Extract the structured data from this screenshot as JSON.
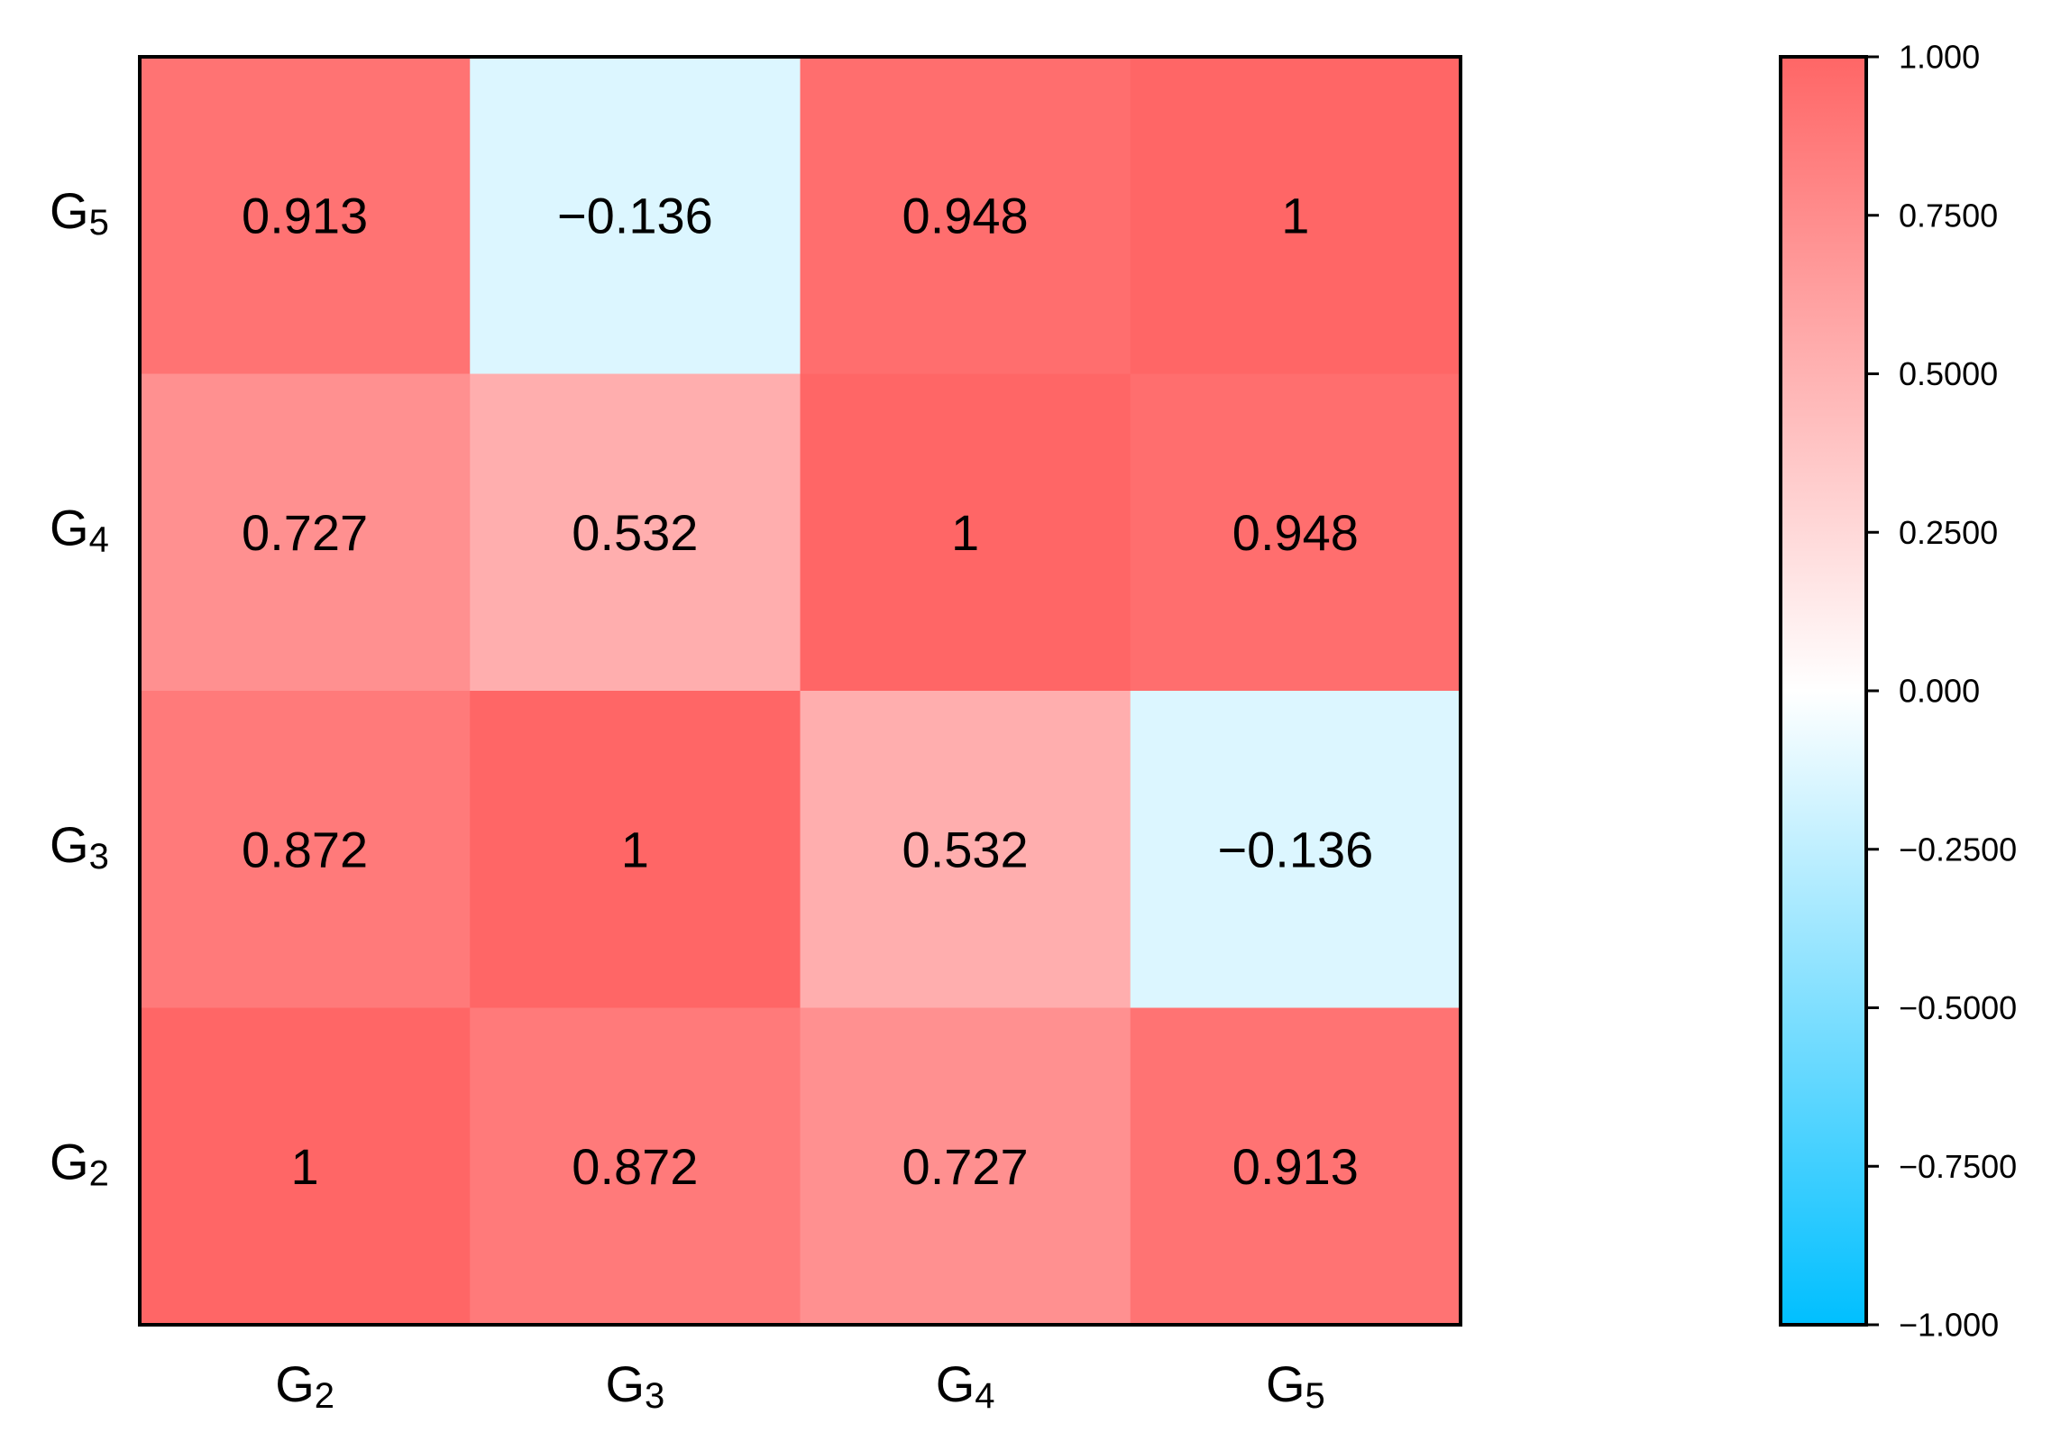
{
  "chart_data": {
    "type": "heatmap",
    "x_labels": [
      {
        "base": "G",
        "sub": "2"
      },
      {
        "base": "G",
        "sub": "3"
      },
      {
        "base": "G",
        "sub": "4"
      },
      {
        "base": "G",
        "sub": "5"
      }
    ],
    "y_labels": [
      {
        "base": "G",
        "sub": "5"
      },
      {
        "base": "G",
        "sub": "4"
      },
      {
        "base": "G",
        "sub": "3"
      },
      {
        "base": "G",
        "sub": "2"
      }
    ],
    "values": [
      [
        0.913,
        -0.136,
        0.948,
        1
      ],
      [
        0.727,
        0.532,
        1,
        0.948
      ],
      [
        0.872,
        1,
        0.532,
        -0.136
      ],
      [
        1,
        0.872,
        0.727,
        0.913
      ]
    ],
    "value_labels": [
      [
        "0.913",
        "−0.136",
        "0.948",
        "1"
      ],
      [
        "0.727",
        "0.532",
        "1",
        "0.948"
      ],
      [
        "0.872",
        "1",
        "0.532",
        "−0.136"
      ],
      [
        "1",
        "0.872",
        "0.727",
        "0.913"
      ]
    ],
    "colorbar": {
      "range": [
        -1,
        1
      ],
      "min_color": "#00BFFF",
      "mid_color": "#FFFFFF",
      "max_color": "#FF6666",
      "ticks": [
        1,
        0.75,
        0.5,
        0.25,
        0,
        -0.25,
        -0.5,
        -0.75,
        -1
      ],
      "tick_labels": [
        "1.000",
        "0.7500",
        "0.5000",
        "0.2500",
        "0.000",
        "−0.2500",
        "−0.5000",
        "−0.7500",
        "−1.000"
      ]
    }
  }
}
